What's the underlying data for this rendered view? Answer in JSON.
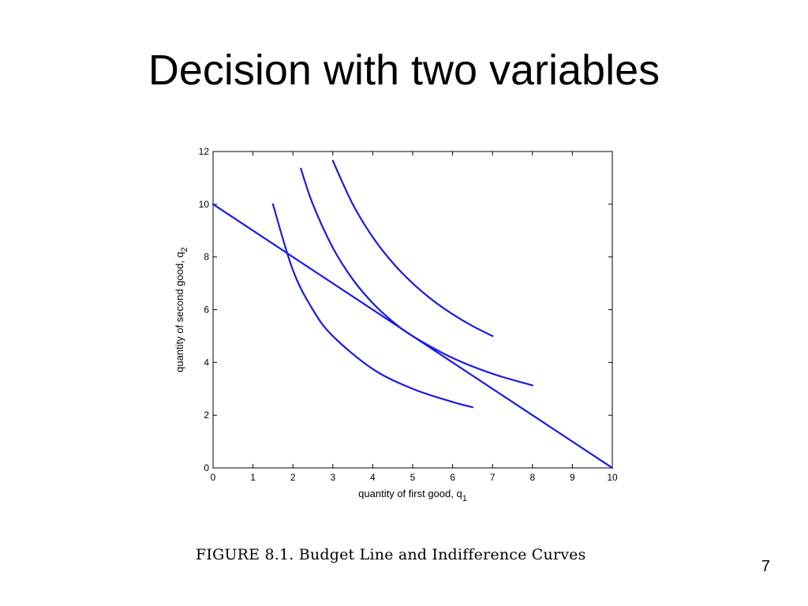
{
  "slide": {
    "title": "Decision with two variables",
    "caption": "FIGURE 8.1. Budget Line and Indifference Curves",
    "page_number": "7"
  },
  "chart_data": {
    "type": "line",
    "title": "",
    "xlabel": "quantity of first good, q",
    "xlabel_sub": "1",
    "ylabel": "quantity of second good, q",
    "ylabel_sub": "2",
    "xlim": [
      0,
      10
    ],
    "ylim": [
      0,
      12
    ],
    "xticks": [
      0,
      1,
      2,
      3,
      4,
      5,
      6,
      7,
      8,
      9,
      10
    ],
    "yticks": [
      0,
      2,
      4,
      6,
      8,
      10,
      12
    ],
    "grid": false,
    "line_color": "#1a1ae6",
    "series": [
      {
        "x": [
          0,
          10
        ],
        "y": [
          10,
          0
        ]
      },
      {
        "x": [
          1.5,
          2,
          2.5,
          3,
          4,
          5,
          6,
          6.5
        ],
        "y": [
          10,
          7.5,
          6,
          5,
          3.75,
          3,
          2.5,
          2.3
        ]
      },
      {
        "x": [
          2.2,
          2.5,
          3,
          3.5,
          4,
          4.5,
          5,
          6,
          7,
          8
        ],
        "y": [
          11.35,
          10,
          8.35,
          7.15,
          6.25,
          5.55,
          5,
          4.17,
          3.57,
          3.13
        ]
      },
      {
        "x": [
          3,
          3.5,
          4,
          4.5,
          5,
          5.5,
          6,
          6.5,
          7
        ],
        "y": [
          11.65,
          10,
          8.75,
          7.78,
          7,
          6.36,
          5.83,
          5.38,
          5
        ]
      }
    ]
  }
}
